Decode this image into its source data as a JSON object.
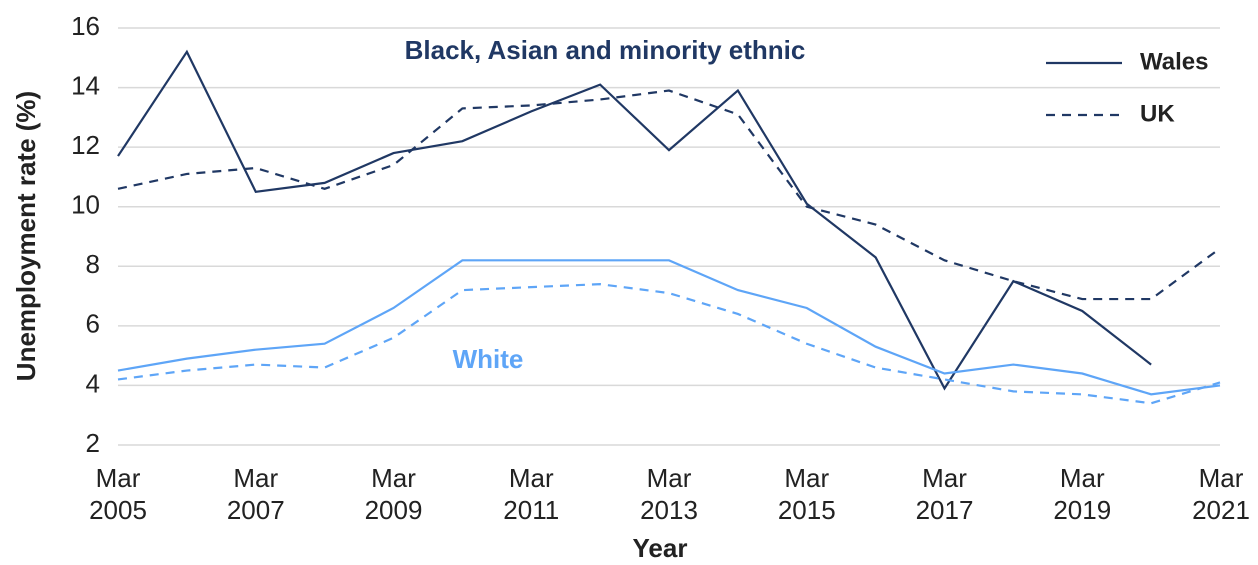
{
  "chart_data": {
    "type": "line",
    "x_label": "Year",
    "y_label": "Unemployment rate (%)",
    "categories": [
      "Mar 2005",
      null,
      "Mar 2007",
      null,
      "Mar 2009",
      null,
      "Mar 2011",
      null,
      "Mar 2013",
      null,
      "Mar 2015",
      null,
      "Mar 2017",
      null,
      "Mar 2019",
      null,
      "Mar 2021"
    ],
    "ylim": [
      2,
      16
    ],
    "yticks": [
      2,
      4,
      6,
      8,
      10,
      12,
      14,
      16
    ],
    "grid": true,
    "legend_position": "upper right",
    "legend": [
      {
        "name": "Wales",
        "dash": "solid"
      },
      {
        "name": "UK",
        "dash": "dashed"
      }
    ],
    "annotations": [
      {
        "text": "Black, Asian and minority ethnic",
        "color": "#203864"
      },
      {
        "text": "White",
        "color": "#5ea5f7"
      }
    ],
    "series": [
      {
        "legend": 0,
        "group": 0,
        "values": [
          11.7,
          15.2,
          10.5,
          10.8,
          11.8,
          12.2,
          13.2,
          14.1,
          11.9,
          13.9,
          10.1,
          8.3,
          3.9,
          7.5,
          6.5,
          4.7,
          null
        ]
      },
      {
        "legend": 1,
        "group": 0,
        "values": [
          10.6,
          11.1,
          11.3,
          10.6,
          11.4,
          13.3,
          13.4,
          13.6,
          13.9,
          13.1,
          10.0,
          9.4,
          8.2,
          7.5,
          6.9,
          6.9,
          8.6
        ]
      },
      {
        "legend": 0,
        "group": 1,
        "values": [
          4.5,
          4.9,
          5.2,
          5.4,
          6.6,
          8.2,
          8.2,
          8.2,
          8.2,
          7.2,
          6.6,
          5.3,
          4.4,
          4.7,
          4.4,
          3.7,
          4.0
        ]
      },
      {
        "legend": 1,
        "group": 1,
        "values": [
          4.2,
          4.5,
          4.7,
          4.6,
          5.6,
          7.2,
          7.3,
          7.4,
          7.1,
          6.4,
          5.4,
          4.6,
          4.2,
          3.8,
          3.7,
          3.4,
          4.1
        ]
      }
    ]
  }
}
